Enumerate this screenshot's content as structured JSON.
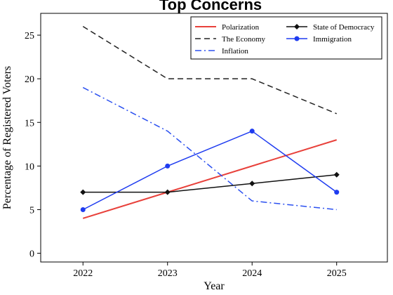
{
  "chart_data": {
    "type": "line",
    "title": "Top Concerns",
    "xlabel": "Year",
    "ylabel": "Percentage of Registered Voters",
    "categories": [
      "2022",
      "2023",
      "2024",
      "2025"
    ],
    "ylim": [
      -1,
      27.5
    ],
    "yticks": [
      0,
      5,
      10,
      15,
      20,
      25
    ],
    "legend_position": "top-right",
    "series": [
      {
        "name": "Polarization",
        "values": [
          4,
          7,
          10,
          13
        ],
        "color": "#e8413b",
        "style": "solid",
        "marker": "none"
      },
      {
        "name": "The Economy",
        "values": [
          26,
          20,
          20,
          16
        ],
        "color": "#222222",
        "style": "dashed",
        "marker": "none"
      },
      {
        "name": "Inflation",
        "values": [
          19,
          14,
          6,
          5
        ],
        "color": "#2b50f0",
        "style": "dashdot",
        "marker": "none"
      },
      {
        "name": "State of Democracy",
        "values": [
          7,
          7,
          8,
          9
        ],
        "color": "#111111",
        "style": "solid",
        "marker": "diamond"
      },
      {
        "name": "Immigration",
        "values": [
          5,
          10,
          14,
          7
        ],
        "color": "#1f3cf0",
        "style": "solid",
        "marker": "circle"
      }
    ]
  }
}
